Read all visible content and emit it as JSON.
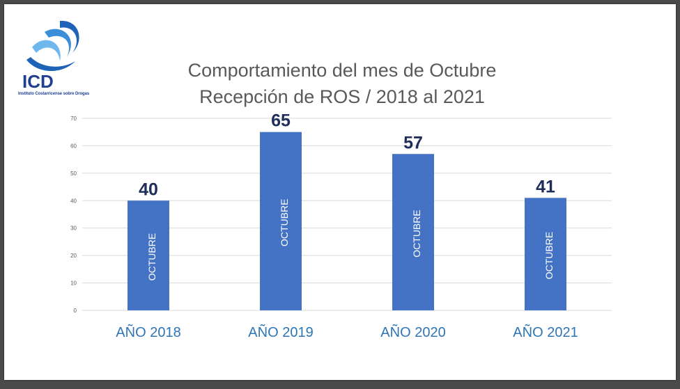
{
  "logo": {
    "text": "ICD",
    "caption": "Instituto Costarricense sobre Drogas"
  },
  "chart_data": {
    "type": "bar",
    "title": "Comportamiento del mes de Octubre",
    "subtitle": "Recepción de ROS / 2018 al 2021",
    "categories": [
      "AÑO 2018",
      "AÑO 2019",
      "AÑO 2020",
      "AÑO 2021"
    ],
    "series": [
      {
        "name": "OCTUBRE",
        "values": [
          40,
          65,
          57,
          41
        ]
      }
    ],
    "ylim": [
      0,
      70
    ],
    "yticks": [
      0,
      10,
      20,
      30,
      40,
      50,
      60,
      70
    ],
    "grid": true,
    "colors": {
      "bar": "#4472c4",
      "bar_label": "#ffffff",
      "data_label": "#1f2d5a",
      "category_label": "#2e75b6",
      "tick_label": "#595959",
      "grid": "#d9d9d9"
    }
  }
}
